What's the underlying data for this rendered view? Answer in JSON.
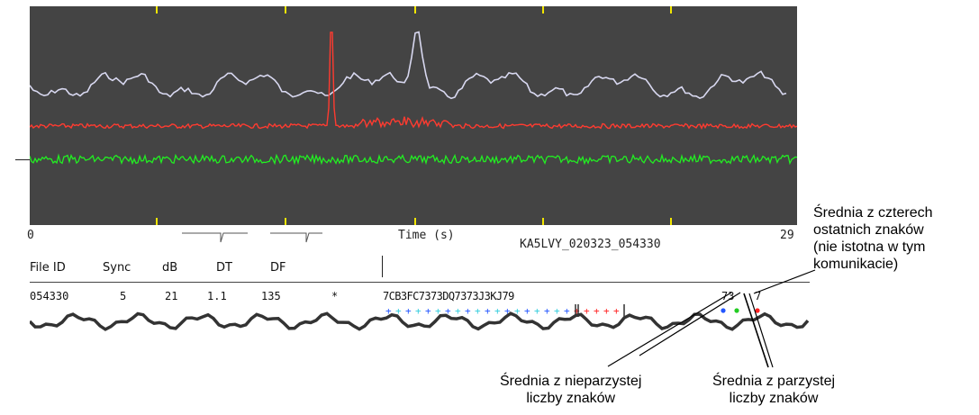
{
  "axis": {
    "x_start": "0",
    "x_end": "29",
    "x_label": "Time (s)",
    "file_name": "KA5LVY_020323_054330"
  },
  "headers": {
    "file_id": "File ID",
    "sync": "Sync",
    "db": "dB",
    "dt": "DT",
    "df": "DF"
  },
  "decode": {
    "file_id": "054330",
    "sync": "5",
    "db": "21",
    "dt": "1.1",
    "df": "135",
    "marker": "*",
    "message": "7CB3FC7373DQ7373J3KJ79",
    "avg_odd": "73",
    "avg_last4": "7"
  },
  "annotations": {
    "last4": [
      "Średnia z czterech",
      "ostatnich znaków",
      "(nie istotna w tym",
      "komunikacie)"
    ],
    "odd": [
      "Średnia z nieparzystej",
      "liczby znaków"
    ],
    "even": [
      "Średnia z parzystej",
      "liczby znaków"
    ]
  },
  "colors": {
    "plot_bg": "#444444",
    "white_trace": "#d8d8f0",
    "red_trace": "#ff3b30",
    "green_trace": "#22ee22",
    "tick": "#f2e600",
    "dot_blue": "#2255ff",
    "dot_cyan": "#33ccdd",
    "dot_red": "#ff2222",
    "dot_green": "#22cc22"
  }
}
